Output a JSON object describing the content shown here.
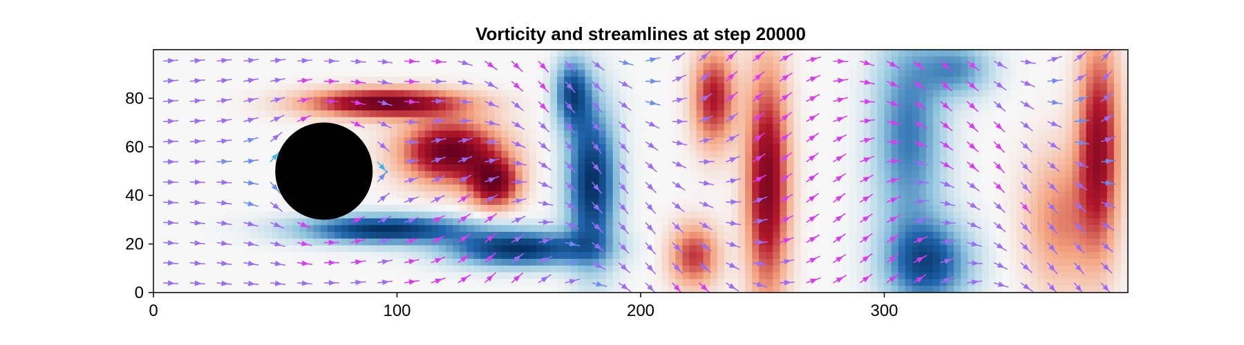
{
  "chart_data": {
    "type": "heatmap",
    "title": "Vorticity and streamlines at step 20000",
    "xlabel": "",
    "ylabel": "",
    "xlim": [
      0,
      400
    ],
    "ylim": [
      0,
      100
    ],
    "x_ticks": [
      0,
      100,
      200,
      300
    ],
    "y_ticks": [
      0,
      20,
      40,
      60,
      80
    ],
    "x_tick_labels": [
      "0",
      "100",
      "200",
      "300"
    ],
    "y_tick_labels": [
      "0",
      "20",
      "40",
      "60",
      "80"
    ],
    "grid": false,
    "legend": "none",
    "colormap": "RdBu (red = positive vorticity, blue = negative vorticity)",
    "obstacle": {
      "shape": "circle",
      "center": [
        70,
        50
      ],
      "radius": 20,
      "color": "#000000"
    },
    "vorticity_features": [
      {
        "sign": "positive",
        "strength": 1.0,
        "x": 95,
        "y": 78,
        "sx": 22,
        "sy": 4
      },
      {
        "sign": "positive",
        "strength": 1.0,
        "x": 122,
        "y": 58,
        "sx": 14,
        "sy": 9
      },
      {
        "sign": "positive",
        "strength": 0.9,
        "x": 140,
        "y": 45,
        "sx": 7,
        "sy": 7
      },
      {
        "sign": "negative",
        "strength": 1.0,
        "x": 95,
        "y": 26,
        "sx": 24,
        "sy": 4
      },
      {
        "sign": "negative",
        "strength": 1.0,
        "x": 150,
        "y": 18,
        "sx": 20,
        "sy": 5
      },
      {
        "sign": "negative",
        "strength": 1.0,
        "x": 180,
        "y": 45,
        "sx": 7,
        "sy": 22
      },
      {
        "sign": "negative",
        "strength": 0.8,
        "x": 172,
        "y": 82,
        "sx": 5,
        "sy": 10
      },
      {
        "sign": "positive",
        "strength": 0.7,
        "x": 230,
        "y": 80,
        "sx": 6,
        "sy": 14
      },
      {
        "sign": "positive",
        "strength": 0.9,
        "x": 252,
        "y": 45,
        "sx": 6,
        "sy": 32
      },
      {
        "sign": "positive",
        "strength": 0.6,
        "x": 222,
        "y": 15,
        "sx": 7,
        "sy": 9
      },
      {
        "sign": "negative",
        "strength": 0.6,
        "x": 310,
        "y": 65,
        "sx": 10,
        "sy": 30
      },
      {
        "sign": "negative",
        "strength": 0.8,
        "x": 318,
        "y": 12,
        "sx": 12,
        "sy": 12
      },
      {
        "sign": "negative",
        "strength": 0.5,
        "x": 330,
        "y": 92,
        "sx": 10,
        "sy": 8
      },
      {
        "sign": "positive",
        "strength": 0.8,
        "x": 388,
        "y": 60,
        "sx": 6,
        "sy": 30
      },
      {
        "sign": "positive",
        "strength": 0.4,
        "x": 372,
        "y": 30,
        "sx": 10,
        "sy": 20
      }
    ],
    "streamline_colors": [
      "#3fb6f2",
      "#6f8cf3",
      "#9b6cf5",
      "#d83cf0"
    ]
  }
}
